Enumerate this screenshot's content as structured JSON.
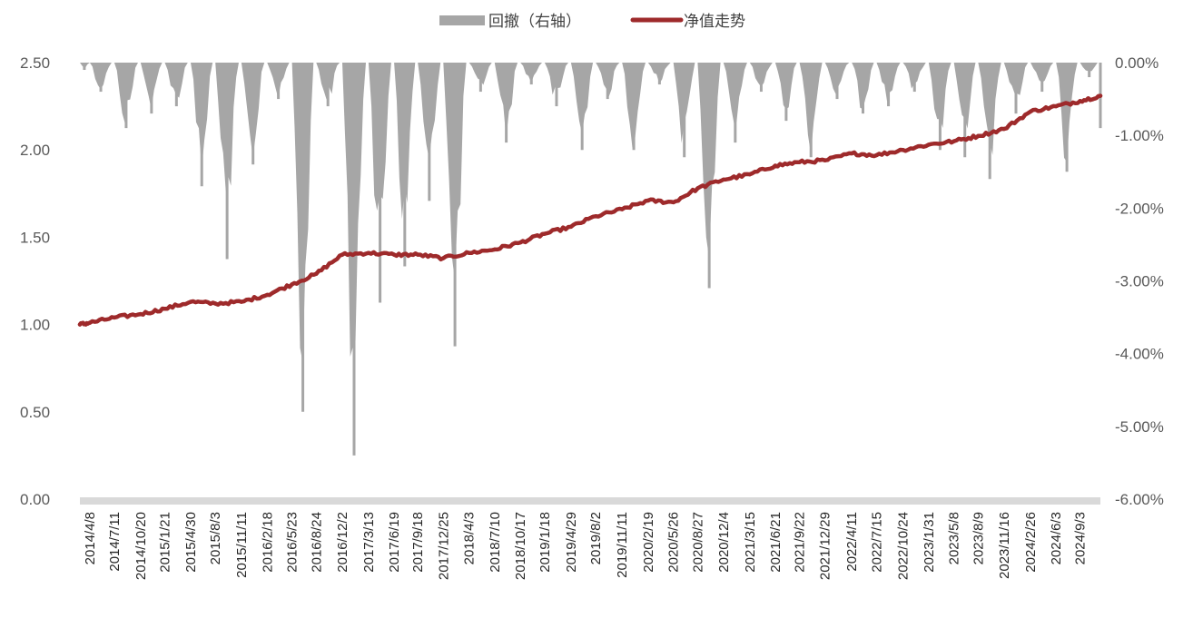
{
  "chart_data": {
    "type": "line",
    "title": "",
    "legend": {
      "placement": "top-center",
      "items": [
        {
          "label": "回撤（右轴）",
          "kind": "area",
          "color": "#a6a6a6"
        },
        {
          "label": "净值走势",
          "kind": "line",
          "color": "#9e2a2b"
        }
      ]
    },
    "y_left": {
      "ylim": [
        0,
        2.5
      ],
      "ticks": [
        "0.00",
        "0.50",
        "1.00",
        "1.50",
        "2.00",
        "2.50"
      ],
      "tick_values": [
        0,
        0.5,
        1.0,
        1.5,
        2.0,
        2.5
      ]
    },
    "y_right": {
      "ylim": [
        -6.0,
        0.0
      ],
      "ticks": [
        "-6.00%",
        "-5.00%",
        "-4.00%",
        "-3.00%",
        "-2.00%",
        "-1.00%",
        "0.00%"
      ],
      "tick_values": [
        -6,
        -5,
        -4,
        -3,
        -2,
        -1,
        0
      ]
    },
    "x_ticks": [
      "2014/4/8",
      "2014/7/11",
      "2014/10/20",
      "2015/1/21",
      "2015/4/30",
      "2015/8/3",
      "2015/11/11",
      "2016/2/18",
      "2016/5/23",
      "2016/8/24",
      "2016/12/2",
      "2017/3/13",
      "2017/6/19",
      "2017/9/18",
      "2017/12/25",
      "2018/4/3",
      "2018/7/10",
      "2018/10/17",
      "2019/1/18",
      "2019/4/29",
      "2019/8/2",
      "2019/11/11",
      "2020/2/19",
      "2020/5/26",
      "2020/8/27",
      "2020/12/4",
      "2021/3/15",
      "2021/6/21",
      "2021/9/22",
      "2021/12/29",
      "2022/4/11",
      "2022/7/15",
      "2022/10/24",
      "2023/1/31",
      "2023/5/8",
      "2023/8/9",
      "2023/11/16",
      "2024/2/26",
      "2024/6/3",
      "2024/9/3"
    ],
    "grid": false,
    "colors": {
      "nav": "#9e2a2b",
      "drawdown": "#a6a6a6",
      "axis": "#d9d9d9"
    },
    "series": [
      {
        "name": "净值走势",
        "axis": "left",
        "x": [
          "2014/3/1",
          "2014/4/8",
          "2014/7/11",
          "2014/10/20",
          "2015/1/21",
          "2015/4/30",
          "2015/8/3",
          "2015/11/11",
          "2016/2/18",
          "2016/5/23",
          "2016/8/24",
          "2016/12/2",
          "2017/3/13",
          "2017/6/19",
          "2017/9/18",
          "2017/12/25",
          "2018/4/3",
          "2018/7/10",
          "2018/10/17",
          "2019/1/18",
          "2019/4/29",
          "2019/8/2",
          "2019/11/11",
          "2020/2/19",
          "2020/5/26",
          "2020/8/27",
          "2020/12/4",
          "2021/3/15",
          "2021/6/21",
          "2021/9/22",
          "2021/12/29",
          "2022/4/11",
          "2022/7/15",
          "2022/10/24",
          "2023/1/31",
          "2023/5/8",
          "2023/8/9",
          "2023/11/16",
          "2024/2/26",
          "2024/6/3",
          "2024/9/3",
          "2024/11/20"
        ],
        "values": [
          1.0,
          1.01,
          1.04,
          1.06,
          1.09,
          1.13,
          1.12,
          1.13,
          1.17,
          1.23,
          1.29,
          1.4,
          1.41,
          1.4,
          1.4,
          1.38,
          1.41,
          1.43,
          1.47,
          1.52,
          1.56,
          1.62,
          1.66,
          1.71,
          1.7,
          1.78,
          1.83,
          1.86,
          1.91,
          1.93,
          1.94,
          1.98,
          1.97,
          2.0,
          2.03,
          2.05,
          2.08,
          2.12,
          2.22,
          2.25,
          2.28,
          2.31
        ]
      },
      {
        "name": "回撤（右轴）",
        "axis": "right",
        "x": [
          "2014/3/1",
          "2014/4/8",
          "2014/7/11",
          "2014/10/20",
          "2015/1/21",
          "2015/4/30",
          "2015/8/3",
          "2015/11/11",
          "2016/2/18",
          "2016/5/23",
          "2016/8/24",
          "2016/12/2",
          "2017/3/13",
          "2017/6/19",
          "2017/9/18",
          "2017/12/25",
          "2018/4/3",
          "2018/7/10",
          "2018/10/17",
          "2019/1/18",
          "2019/4/29",
          "2019/8/2",
          "2019/11/11",
          "2020/2/19",
          "2020/5/26",
          "2020/8/27",
          "2020/12/4",
          "2021/3/15",
          "2021/6/21",
          "2021/9/22",
          "2021/12/29",
          "2022/4/11",
          "2022/7/15",
          "2022/10/24",
          "2023/1/31",
          "2023/5/8",
          "2023/8/9",
          "2023/11/16",
          "2024/2/26",
          "2024/6/3",
          "2024/9/3",
          "2024/11/20"
        ],
        "values": [
          -0.1,
          -0.4,
          -0.9,
          -0.7,
          -0.6,
          -1.7,
          -2.7,
          -1.4,
          -0.5,
          -4.8,
          -0.6,
          -5.4,
          -3.3,
          -2.8,
          -1.9,
          -3.9,
          -0.4,
          -1.1,
          -0.3,
          -0.6,
          -1.2,
          -0.5,
          -1.2,
          -0.3,
          -1.3,
          -3.1,
          -1.1,
          -0.4,
          -0.8,
          -1.3,
          -0.5,
          -0.7,
          -0.6,
          -0.4,
          -1.2,
          -1.3,
          -1.6,
          -0.7,
          -0.4,
          -1.5,
          -0.2,
          -0.9
        ]
      }
    ]
  }
}
